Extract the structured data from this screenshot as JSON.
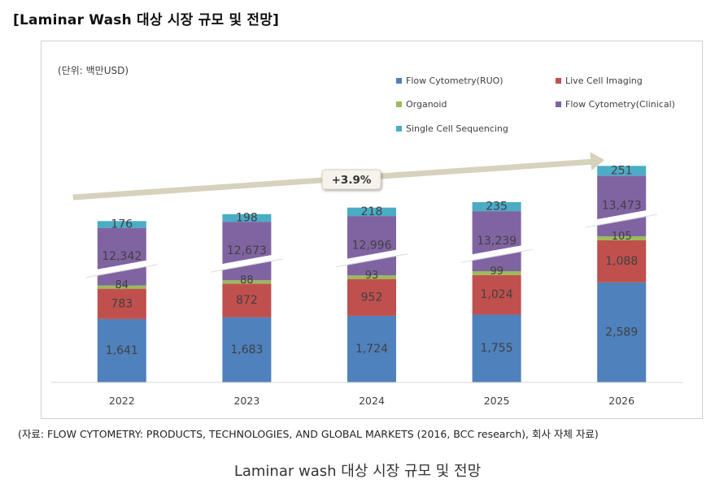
{
  "heading": "[Laminar Wash 대상 시장 규모 및 전망]",
  "source_note": "(자료: FLOW CYTOMETRY: PRODUCTS, TECHNOLOGIES, AND GLOBAL MARKETS (2016, BCC research), 회사 자체 자료)",
  "caption": "Laminar wash 대상 시장 규모 및 전망",
  "chart_data": {
    "type": "bar",
    "stacked": true,
    "axis_break": true,
    "unit_label": "(단위: 백만USD)",
    "categories": [
      "2022",
      "2023",
      "2024",
      "2025",
      "2026"
    ],
    "series": [
      {
        "name": "Flow Cytometry(RUO)",
        "color": "#4f81bd",
        "values": [
          1641,
          1683,
          1724,
          1755,
          2589
        ],
        "labels": [
          "1,641",
          "1,683",
          "1,724",
          "1,755",
          "2,589"
        ]
      },
      {
        "name": "Live Cell Imaging",
        "color": "#c0504d",
        "values": [
          783,
          872,
          952,
          1024,
          1088
        ],
        "labels": [
          "783",
          "872",
          "952",
          "1,024",
          "1,088"
        ]
      },
      {
        "name": "Organoid",
        "color": "#9bbb59",
        "values": [
          84,
          88,
          93,
          99,
          105
        ],
        "labels": [
          "84",
          "88",
          "93",
          "99",
          "105"
        ]
      },
      {
        "name": "Flow Cytometry(Clinical)",
        "color": "#8064a2",
        "values": [
          12342,
          12673,
          12996,
          13239,
          13473
        ],
        "labels": [
          "12,342",
          "12,673",
          "12,996",
          "13,239",
          "13,473"
        ]
      },
      {
        "name": "Single Cell Sequencing",
        "color": "#4bacc6",
        "values": [
          176,
          198,
          218,
          235,
          251
        ],
        "labels": [
          "176",
          "198",
          "218",
          "235",
          "251"
        ]
      }
    ],
    "growth_annotation": "+3.9%",
    "legend_position": "top-right"
  }
}
